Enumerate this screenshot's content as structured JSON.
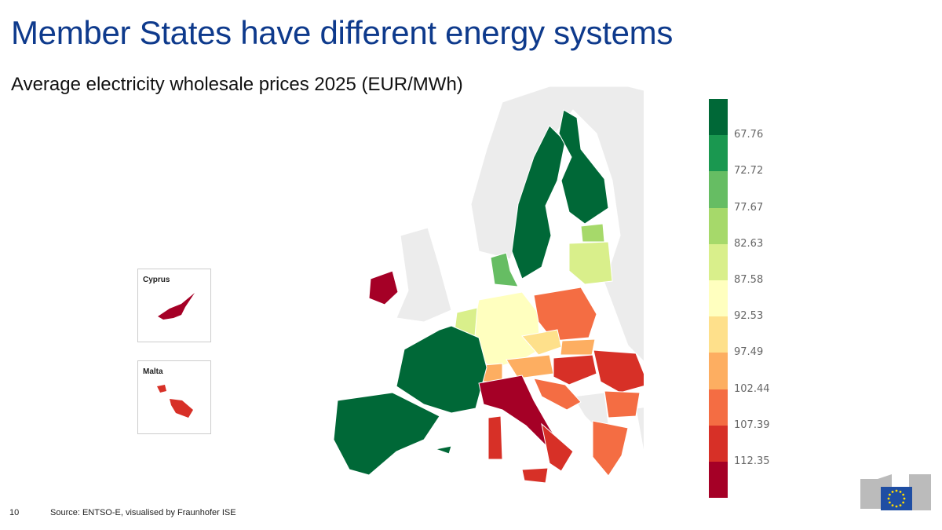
{
  "title": "Member States have different energy systems",
  "subtitle": "Average electricity wholesale prices 2025 (EUR/MWh)",
  "legend": {
    "colors": [
      "#006837",
      "#1a9850",
      "#66bd63",
      "#a6d96a",
      "#d9ef8b",
      "#ffffbf",
      "#fee08b",
      "#fdae61",
      "#f46d43",
      "#d73027",
      "#a50026"
    ],
    "ticks": [
      "67.76",
      "72.72",
      "77.67",
      "82.63",
      "87.58",
      "92.53",
      "97.49",
      "102.44",
      "107.39",
      "112.35"
    ]
  },
  "insets": {
    "cyprus": "Cyprus",
    "malta": "Malta"
  },
  "footer": {
    "page_number": "10",
    "source": "Source: ENTSO-E, visualised by Fraunhofer ISE"
  },
  "colors": {
    "non_eu_land": "#ececec",
    "title": "#0e3a8c",
    "eu_flag": "#1f4ea3"
  }
}
